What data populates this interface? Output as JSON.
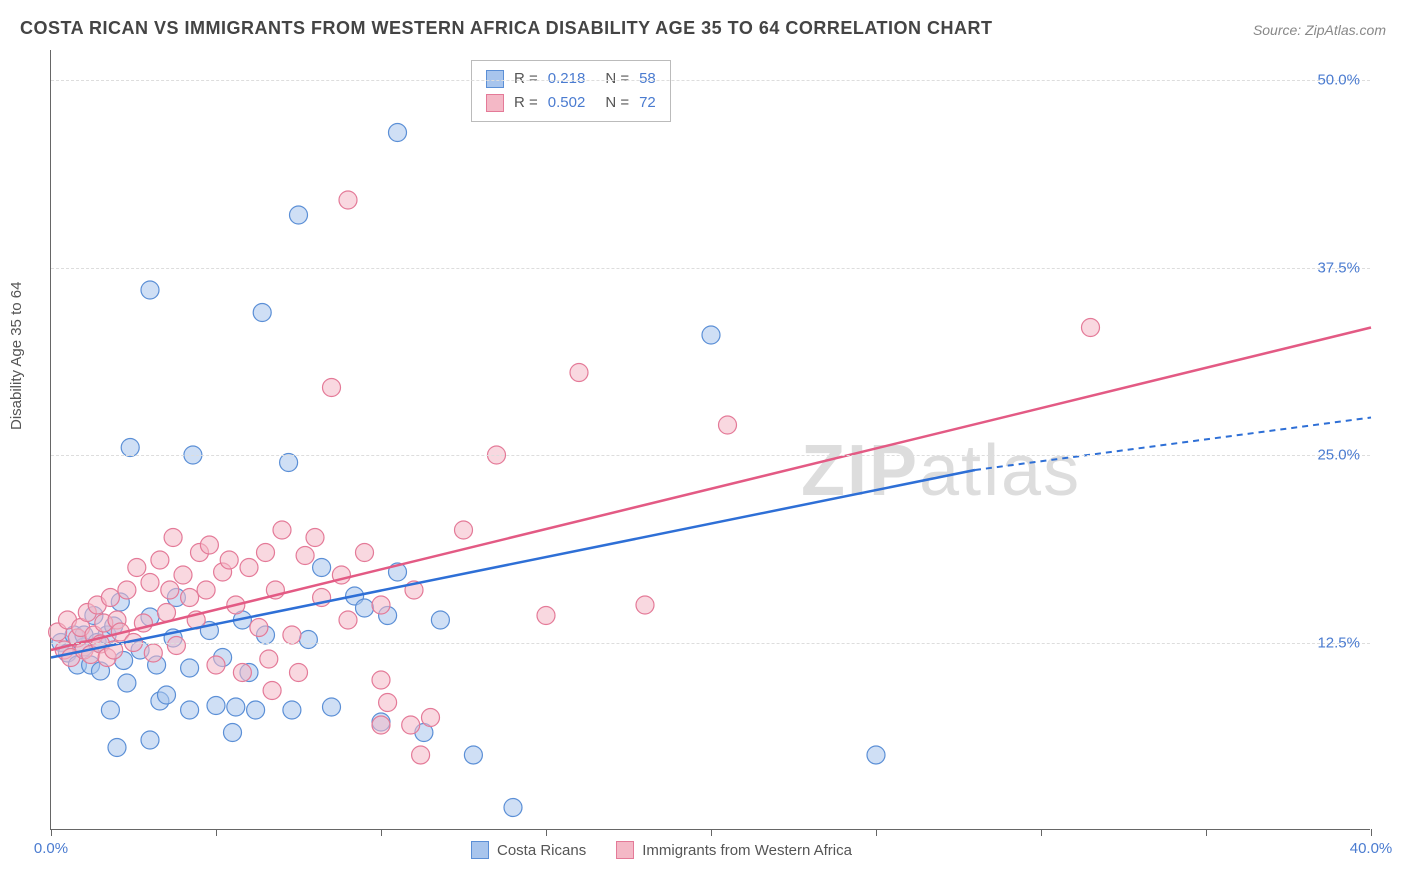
{
  "title": "COSTA RICAN VS IMMIGRANTS FROM WESTERN AFRICA DISABILITY AGE 35 TO 64 CORRELATION CHART",
  "source": "Source: ZipAtlas.com",
  "ylabel": "Disability Age 35 to 64",
  "watermark_bold": "ZIP",
  "watermark_light": "atlas",
  "chart": {
    "type": "scatter",
    "background_color": "#ffffff",
    "grid_color": "#dddddd",
    "axis_color": "#666666",
    "tick_label_color": "#4a7bd0",
    "title_fontsize": 18,
    "label_fontsize": 15,
    "xlim": [
      0,
      40
    ],
    "ylim": [
      0,
      52
    ],
    "x_ticks": [
      0,
      5,
      10,
      15,
      20,
      25,
      30,
      35,
      40
    ],
    "x_tick_labels": {
      "0": "0.0%",
      "40": "40.0%"
    },
    "y_gridlines": [
      12.5,
      25.0,
      37.5,
      50.0
    ],
    "y_tick_labels": [
      "12.5%",
      "25.0%",
      "37.5%",
      "50.0%"
    ],
    "marker_radius": 9,
    "series": [
      {
        "name": "Costa Ricans",
        "color_fill": "#a8c5ed",
        "color_stroke": "#5b8fd6",
        "R": "0.218",
        "N": "58",
        "trend": {
          "x1": 0,
          "y1": 11.5,
          "x2_solid": 28,
          "y2_solid": 24,
          "x2": 40,
          "y2": 27.5,
          "line_color": "#2e6fd6"
        },
        "points": [
          [
            0.3,
            12.5
          ],
          [
            0.5,
            11.8
          ],
          [
            0.7,
            13.0
          ],
          [
            0.8,
            11.0
          ],
          [
            1.0,
            12.2
          ],
          [
            1.0,
            13.0
          ],
          [
            1.2,
            11.0
          ],
          [
            1.3,
            14.3
          ],
          [
            1.4,
            12.5
          ],
          [
            1.5,
            10.6
          ],
          [
            1.7,
            13.0
          ],
          [
            1.8,
            8.0
          ],
          [
            1.9,
            13.6
          ],
          [
            2.0,
            5.5
          ],
          [
            2.1,
            15.2
          ],
          [
            2.2,
            11.3
          ],
          [
            2.3,
            9.8
          ],
          [
            2.4,
            25.5
          ],
          [
            2.7,
            12.0
          ],
          [
            3.0,
            6.0
          ],
          [
            3.0,
            14.2
          ],
          [
            3.0,
            36.0
          ],
          [
            3.2,
            11.0
          ],
          [
            3.3,
            8.6
          ],
          [
            3.5,
            9.0
          ],
          [
            3.7,
            12.8
          ],
          [
            3.8,
            15.5
          ],
          [
            4.2,
            8.0
          ],
          [
            4.2,
            10.8
          ],
          [
            4.3,
            25.0
          ],
          [
            4.8,
            13.3
          ],
          [
            5.0,
            8.3
          ],
          [
            5.2,
            11.5
          ],
          [
            5.5,
            6.5
          ],
          [
            5.6,
            8.2
          ],
          [
            5.8,
            14.0
          ],
          [
            6.0,
            10.5
          ],
          [
            6.2,
            8.0
          ],
          [
            6.4,
            34.5
          ],
          [
            6.5,
            13.0
          ],
          [
            7.2,
            24.5
          ],
          [
            7.3,
            8.0
          ],
          [
            7.5,
            41.0
          ],
          [
            7.8,
            12.7
          ],
          [
            8.2,
            17.5
          ],
          [
            8.5,
            8.2
          ],
          [
            9.2,
            15.6
          ],
          [
            9.5,
            14.8
          ],
          [
            10.0,
            7.2
          ],
          [
            10.2,
            14.3
          ],
          [
            10.5,
            17.2
          ],
          [
            10.5,
            46.5
          ],
          [
            11.3,
            6.5
          ],
          [
            11.8,
            14.0
          ],
          [
            12.8,
            5.0
          ],
          [
            14.0,
            1.5
          ],
          [
            20.0,
            33.0
          ],
          [
            25.0,
            5.0
          ]
        ]
      },
      {
        "name": "Immigrants from Western Africa",
        "color_fill": "#f4b8c6",
        "color_stroke": "#e47a98",
        "R": "0.502",
        "N": "72",
        "trend": {
          "x1": 0,
          "y1": 12.0,
          "x2": 40,
          "y2": 33.5,
          "line_color": "#e35a84"
        },
        "points": [
          [
            0.2,
            13.2
          ],
          [
            0.4,
            12.0
          ],
          [
            0.5,
            14.0
          ],
          [
            0.6,
            11.5
          ],
          [
            0.8,
            12.8
          ],
          [
            0.9,
            13.5
          ],
          [
            1.0,
            12.0
          ],
          [
            1.1,
            14.5
          ],
          [
            1.2,
            11.7
          ],
          [
            1.3,
            13.0
          ],
          [
            1.4,
            15.0
          ],
          [
            1.5,
            12.4
          ],
          [
            1.6,
            13.8
          ],
          [
            1.7,
            11.5
          ],
          [
            1.8,
            15.5
          ],
          [
            1.9,
            12.0
          ],
          [
            2.0,
            14.0
          ],
          [
            2.1,
            13.2
          ],
          [
            2.3,
            16.0
          ],
          [
            2.5,
            12.5
          ],
          [
            2.6,
            17.5
          ],
          [
            2.8,
            13.8
          ],
          [
            3.0,
            16.5
          ],
          [
            3.1,
            11.8
          ],
          [
            3.3,
            18.0
          ],
          [
            3.5,
            14.5
          ],
          [
            3.6,
            16.0
          ],
          [
            3.7,
            19.5
          ],
          [
            3.8,
            12.3
          ],
          [
            4.0,
            17.0
          ],
          [
            4.2,
            15.5
          ],
          [
            4.4,
            14.0
          ],
          [
            4.5,
            18.5
          ],
          [
            4.7,
            16.0
          ],
          [
            4.8,
            19.0
          ],
          [
            5.0,
            11.0
          ],
          [
            5.2,
            17.2
          ],
          [
            5.4,
            18.0
          ],
          [
            5.6,
            15.0
          ],
          [
            5.8,
            10.5
          ],
          [
            6.0,
            17.5
          ],
          [
            6.3,
            13.5
          ],
          [
            6.5,
            18.5
          ],
          [
            6.6,
            11.4
          ],
          [
            6.7,
            9.3
          ],
          [
            6.8,
            16.0
          ],
          [
            7.0,
            20.0
          ],
          [
            7.3,
            13.0
          ],
          [
            7.5,
            10.5
          ],
          [
            7.7,
            18.3
          ],
          [
            8.0,
            19.5
          ],
          [
            8.2,
            15.5
          ],
          [
            8.5,
            29.5
          ],
          [
            8.8,
            17.0
          ],
          [
            9.0,
            14.0
          ],
          [
            9.0,
            42.0
          ],
          [
            9.5,
            18.5
          ],
          [
            10.0,
            7.0
          ],
          [
            10.0,
            10.0
          ],
          [
            10.0,
            15.0
          ],
          [
            10.2,
            8.5
          ],
          [
            10.9,
            7.0
          ],
          [
            11.0,
            16.0
          ],
          [
            11.5,
            7.5
          ],
          [
            12.5,
            20.0
          ],
          [
            13.5,
            25.0
          ],
          [
            15.0,
            14.3
          ],
          [
            16.0,
            30.5
          ],
          [
            18.0,
            15.0
          ],
          [
            20.5,
            27.0
          ],
          [
            31.5,
            33.5
          ],
          [
            11.2,
            5.0
          ]
        ]
      }
    ]
  },
  "bottom_legend": [
    {
      "swatch": "blue",
      "label": "Costa Ricans"
    },
    {
      "swatch": "pink",
      "label": "Immigrants from Western Africa"
    }
  ],
  "legend_box": {
    "r_label": "R =",
    "n_label": "N ="
  }
}
